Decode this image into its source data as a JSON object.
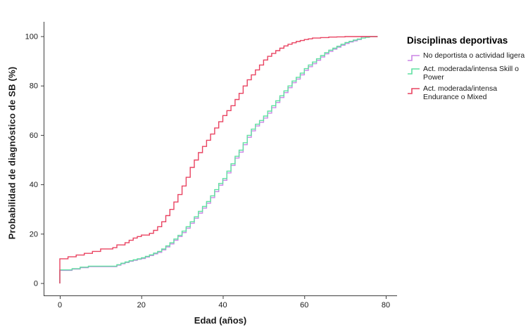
{
  "chart": {
    "legend": {
      "title": "Disciplinas deportivas",
      "entries": [
        {
          "label": "No deportista o actividad ligera",
          "color": "#cb86e5"
        },
        {
          "label": "Act. moderada/intensa Skill o Power",
          "color": "#5fe0a1"
        },
        {
          "label": "Act. moderada/intensa Endurance o Mixed",
          "color": "#e94361"
        }
      ]
    }
  },
  "chart_data": {
    "type": "line",
    "subtype": "step",
    "title": "",
    "xlabel": "Edad (años)",
    "ylabel": "Probabilidad de diagnóstico de SB (%)",
    "xlim": [
      0,
      80
    ],
    "ylim": [
      0,
      100
    ],
    "xticks": [
      0,
      20,
      40,
      60,
      80
    ],
    "yticks": [
      0,
      20,
      40,
      60,
      80,
      100
    ],
    "grid": false,
    "legend_position": "right",
    "axis_color": "#3f3f3f",
    "series": [
      {
        "name": "No deportista o actividad ligera",
        "color": "#cb86e5",
        "points": [
          [
            0,
            0
          ],
          [
            0,
            5.3
          ],
          [
            3,
            5.8
          ],
          [
            5,
            6.4
          ],
          [
            7,
            6.8
          ],
          [
            14,
            7.4
          ],
          [
            15,
            8
          ],
          [
            16,
            8.5
          ],
          [
            17,
            9
          ],
          [
            18,
            9.4
          ],
          [
            19,
            9.8
          ],
          [
            20,
            10.1
          ],
          [
            21,
            10.7
          ],
          [
            22,
            11.3
          ],
          [
            23,
            12
          ],
          [
            24,
            12.6
          ],
          [
            25,
            13.6
          ],
          [
            26,
            14.8
          ],
          [
            27,
            16
          ],
          [
            28,
            17.5
          ],
          [
            29,
            19
          ],
          [
            30,
            20.6
          ],
          [
            31,
            22.4
          ],
          [
            32,
            24.4
          ],
          [
            33,
            26.4
          ],
          [
            34,
            28.5
          ],
          [
            35,
            30.5
          ],
          [
            36,
            32.5
          ],
          [
            37,
            34.8
          ],
          [
            38,
            37.2
          ],
          [
            39,
            39.8
          ],
          [
            40,
            41.8
          ],
          [
            41,
            44.8
          ],
          [
            42,
            47.8
          ],
          [
            43,
            50.8
          ],
          [
            44,
            53.2
          ],
          [
            45,
            56.2
          ],
          [
            46,
            59.2
          ],
          [
            47,
            61.8
          ],
          [
            48,
            63.8
          ],
          [
            49,
            65.3
          ],
          [
            50,
            67
          ],
          [
            51,
            69
          ],
          [
            52,
            71.2
          ],
          [
            53,
            73.3
          ],
          [
            54,
            75.3
          ],
          [
            55,
            77.3
          ],
          [
            56,
            79.3
          ],
          [
            57,
            81.3
          ],
          [
            58,
            82.8
          ],
          [
            59,
            84.5
          ],
          [
            60,
            86.3
          ],
          [
            61,
            87.8
          ],
          [
            62,
            89
          ],
          [
            63,
            90.4
          ],
          [
            64,
            91.7
          ],
          [
            65,
            93
          ],
          [
            66,
            94
          ],
          [
            67,
            94.9
          ],
          [
            68,
            95.7
          ],
          [
            69,
            96.5
          ],
          [
            70,
            97.2
          ],
          [
            71,
            97.8
          ],
          [
            72,
            98.3
          ],
          [
            73,
            98.8
          ],
          [
            74,
            100
          ],
          [
            78,
            100
          ]
        ]
      },
      {
        "name": "Act. moderada/intensa Skill o Power",
        "color": "#5fe0a1",
        "points": [
          [
            0,
            0
          ],
          [
            0,
            5.5
          ],
          [
            3,
            6
          ],
          [
            5,
            6.6
          ],
          [
            7,
            7
          ],
          [
            14,
            7.6
          ],
          [
            15,
            8.2
          ],
          [
            16,
            8.7
          ],
          [
            17,
            9.2
          ],
          [
            18,
            9.6
          ],
          [
            19,
            10
          ],
          [
            20,
            10.4
          ],
          [
            21,
            11
          ],
          [
            22,
            11.6
          ],
          [
            23,
            12.3
          ],
          [
            24,
            13
          ],
          [
            25,
            14
          ],
          [
            26,
            15.2
          ],
          [
            27,
            16.5
          ],
          [
            28,
            18
          ],
          [
            29,
            19.5
          ],
          [
            30,
            21.2
          ],
          [
            31,
            23
          ],
          [
            32,
            25
          ],
          [
            33,
            27
          ],
          [
            34,
            29.2
          ],
          [
            35,
            31.2
          ],
          [
            36,
            33.2
          ],
          [
            37,
            35.5
          ],
          [
            38,
            38
          ],
          [
            39,
            40.5
          ],
          [
            40,
            42.5
          ],
          [
            41,
            45.5
          ],
          [
            42,
            48.5
          ],
          [
            43,
            51.5
          ],
          [
            44,
            54
          ],
          [
            45,
            57
          ],
          [
            46,
            60
          ],
          [
            47,
            62.5
          ],
          [
            48,
            64.5
          ],
          [
            49,
            66
          ],
          [
            50,
            67.8
          ],
          [
            51,
            69.8
          ],
          [
            52,
            72
          ],
          [
            53,
            74
          ],
          [
            54,
            76
          ],
          [
            55,
            78
          ],
          [
            56,
            80
          ],
          [
            57,
            82
          ],
          [
            58,
            83.5
          ],
          [
            59,
            85.2
          ],
          [
            60,
            87
          ],
          [
            61,
            88.5
          ],
          [
            62,
            89.7
          ],
          [
            63,
            91
          ],
          [
            64,
            92.3
          ],
          [
            65,
            93.5
          ],
          [
            66,
            94.5
          ],
          [
            67,
            95.3
          ],
          [
            68,
            96.1
          ],
          [
            69,
            96.9
          ],
          [
            70,
            97.6
          ],
          [
            71,
            98.1
          ],
          [
            72,
            98.6
          ],
          [
            73,
            99
          ],
          [
            74,
            99.4
          ],
          [
            75,
            99.7
          ],
          [
            76,
            100
          ],
          [
            78,
            100
          ]
        ]
      },
      {
        "name": "Act. moderada/intensa Endurance o Mixed",
        "color": "#e94361",
        "points": [
          [
            0,
            0
          ],
          [
            0,
            10
          ],
          [
            2,
            10.8
          ],
          [
            4,
            11.5
          ],
          [
            6,
            12.2
          ],
          [
            8,
            13
          ],
          [
            10,
            14
          ],
          [
            13,
            14.5
          ],
          [
            14,
            15.6
          ],
          [
            16,
            16.5
          ],
          [
            17,
            17.5
          ],
          [
            18,
            18.4
          ],
          [
            19,
            19
          ],
          [
            20,
            19.6
          ],
          [
            22,
            20.3
          ],
          [
            23,
            21.5
          ],
          [
            24,
            23
          ],
          [
            25,
            25
          ],
          [
            26,
            27.5
          ],
          [
            27,
            30
          ],
          [
            28,
            33
          ],
          [
            29,
            36
          ],
          [
            30,
            39.5
          ],
          [
            31,
            43
          ],
          [
            32,
            47
          ],
          [
            33,
            50
          ],
          [
            34,
            53
          ],
          [
            35,
            55.5
          ],
          [
            36,
            58
          ],
          [
            37,
            60.5
          ],
          [
            38,
            63
          ],
          [
            39,
            65.5
          ],
          [
            40,
            68
          ],
          [
            41,
            70
          ],
          [
            42,
            72
          ],
          [
            43,
            74.5
          ],
          [
            44,
            77
          ],
          [
            45,
            80
          ],
          [
            46,
            82.5
          ],
          [
            47,
            84.5
          ],
          [
            48,
            86.5
          ],
          [
            49,
            88.5
          ],
          [
            50,
            90.5
          ],
          [
            51,
            92
          ],
          [
            52,
            93.2
          ],
          [
            53,
            94.3
          ],
          [
            54,
            95.3
          ],
          [
            55,
            96.2
          ],
          [
            56,
            96.9
          ],
          [
            57,
            97.5
          ],
          [
            58,
            98
          ],
          [
            59,
            98.4
          ],
          [
            60,
            98.8
          ],
          [
            61,
            99.1
          ],
          [
            62,
            99.4
          ],
          [
            64,
            99.6
          ],
          [
            66,
            99.8
          ],
          [
            68,
            99.9
          ],
          [
            70,
            100
          ],
          [
            78,
            100
          ]
        ]
      }
    ]
  }
}
